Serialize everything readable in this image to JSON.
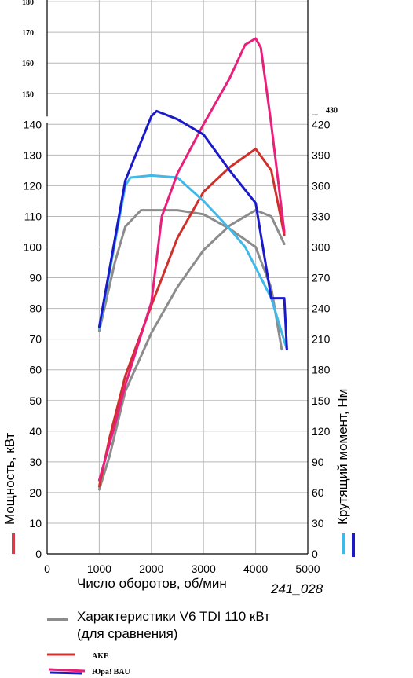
{
  "chart_data": {
    "type": "line",
    "figure_code": "241_028",
    "xlabel": "Число оборотов, об/мин",
    "ylabel_left": "Мощность, кВт",
    "ylabel_right": "Крутящий момент, Нм",
    "x_ticks": [
      "0",
      "1000",
      "2000",
      "3000",
      "4000",
      "5000"
    ],
    "x_range": [
      0,
      5000
    ],
    "y_left_range": [
      0,
      180
    ],
    "y_right_range": [
      0,
      540
    ],
    "y_left_ticks": [
      "0",
      "10",
      "20",
      "30",
      "40",
      "50",
      "60",
      "70",
      "80",
      "90",
      "100",
      "110",
      "120",
      "130",
      "140"
    ],
    "y_left_extra_ticks": [
      "150",
      "160",
      "170",
      "180"
    ],
    "y_right_ticks": [
      "0",
      "30",
      "60",
      "90",
      "120",
      "150",
      "180",
      "210",
      "240",
      "270",
      "300",
      "330",
      "360",
      "390",
      "420"
    ],
    "y_right_extra_tick": "430",
    "grid": true,
    "left_marker_color": "#d0404a",
    "right_marker_colors": [
      "#40b8e8",
      "#1a1ac8"
    ],
    "series": [
      {
        "name": "Характеристики V6 TDI 110 кВт (для сравнения)",
        "kind": "power",
        "axis": "left",
        "color": "#8c8c8c",
        "x": [
          1000,
          1200,
          1500,
          2000,
          2500,
          3000,
          3500,
          4000,
          4300,
          4550
        ],
        "y": [
          21,
          32,
          53,
          72,
          87,
          99,
          107,
          112,
          110,
          101
        ]
      },
      {
        "name": "Характеристики V6 TDI 110 кВт (для сравнения)",
        "kind": "torque",
        "axis": "right",
        "color": "#8c8c8c",
        "x": [
          1000,
          1300,
          1500,
          1800,
          2500,
          3000,
          3500,
          4000,
          4300,
          4500
        ],
        "y": [
          218,
          285,
          320,
          336,
          336,
          332,
          318,
          300,
          260,
          200
        ]
      },
      {
        "name": "AKE",
        "kind": "power",
        "axis": "left",
        "color": "#d0302c",
        "x": [
          1000,
          1200,
          1500,
          2000,
          2500,
          3000,
          3500,
          4000,
          4300,
          4550
        ],
        "y": [
          22,
          38,
          58,
          81,
          103,
          118,
          126,
          132,
          125,
          104
        ]
      },
      {
        "name": "AKE",
        "kind": "torque",
        "axis": "right",
        "color": "#40b8e8",
        "x": [
          1000,
          1500,
          1600,
          2000,
          2500,
          3000,
          3500,
          3800,
          4000,
          4300,
          4600
        ],
        "y": [
          220,
          360,
          368,
          370,
          368,
          345,
          318,
          300,
          280,
          250,
          200
        ]
      },
      {
        "name": "Юра! BAU",
        "kind": "power",
        "axis": "left",
        "color": "#e8207c",
        "x": [
          1000,
          1300,
          1500,
          2000,
          2200,
          2500,
          3000,
          3500,
          3800,
          4000,
          4100,
          4300,
          4550
        ],
        "y": [
          24,
          42,
          55,
          82,
          110,
          124,
          140,
          155,
          166,
          168,
          165,
          140,
          105
        ]
      },
      {
        "name": "Юра! BAU",
        "kind": "torque",
        "axis": "right",
        "color": "#1a1ac8",
        "x": [
          1000,
          1500,
          2000,
          2100,
          2500,
          3000,
          3500,
          4000,
          4300,
          4550,
          4600
        ],
        "y": [
          222,
          365,
          428,
          433,
          425,
          410,
          375,
          343,
          250,
          250,
          200
        ]
      }
    ],
    "legend": [
      {
        "line1": "Характеристики V6 TDI 110 кВт",
        "line2": "(для сравнения)",
        "colors": [
          "#8c8c8c"
        ]
      },
      {
        "line1": "AKE",
        "colors": [
          "#d0302c"
        ]
      },
      {
        "line1": "Юра! BAU",
        "colors": [
          "#e8207c",
          "#1a1ac8"
        ]
      }
    ]
  }
}
